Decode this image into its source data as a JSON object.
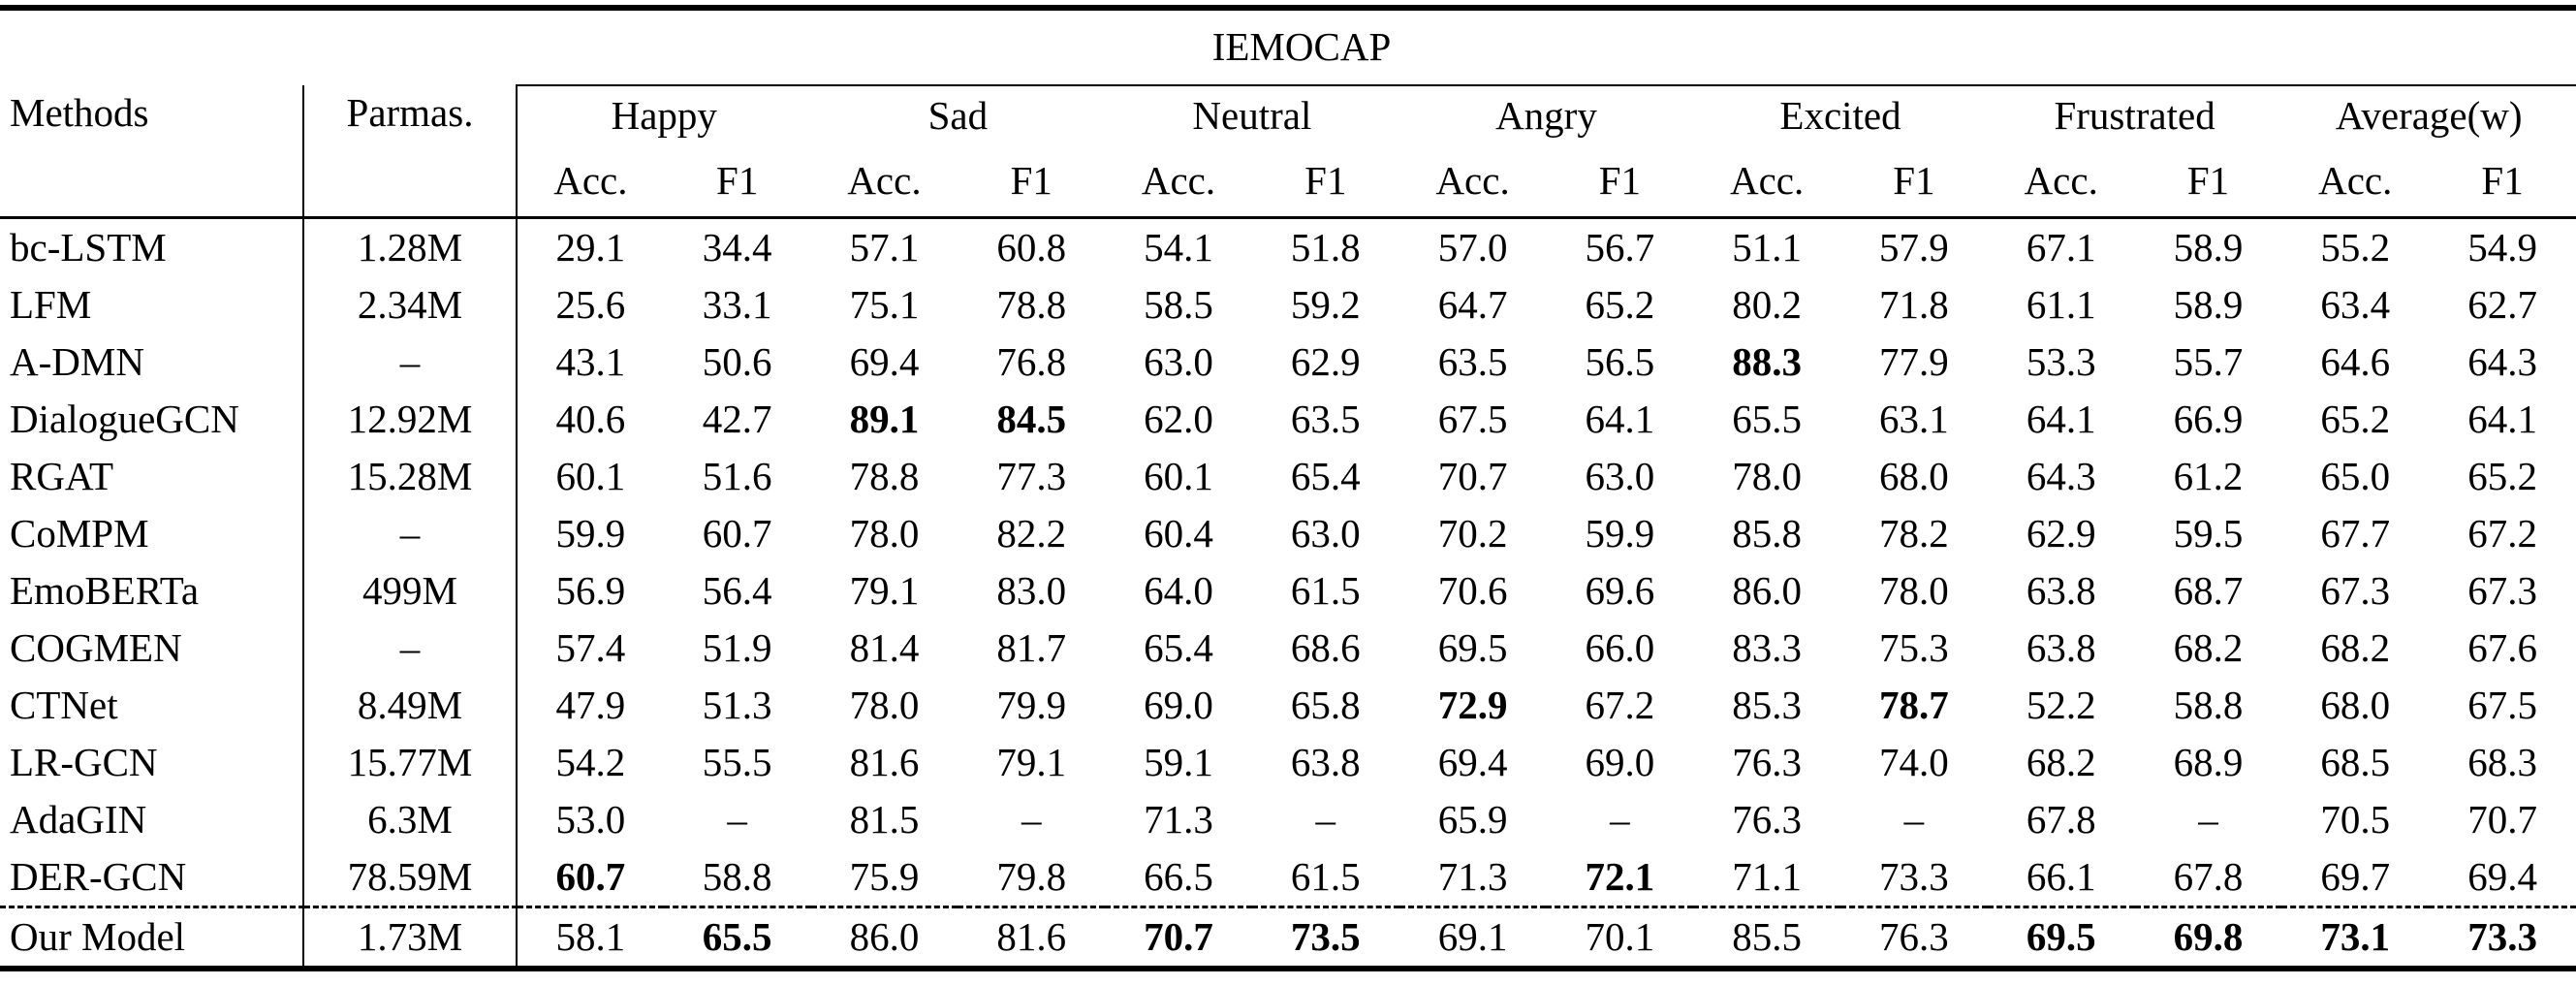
{
  "table": {
    "dataset": "IEMOCAP",
    "methods_label": "Methods",
    "params_label": "Parmas.",
    "groups": [
      {
        "label": "Happy",
        "sub": [
          "Acc.",
          "F1"
        ]
      },
      {
        "label": "Sad",
        "sub": [
          "Acc.",
          "F1"
        ]
      },
      {
        "label": "Neutral",
        "sub": [
          "Acc.",
          "F1"
        ]
      },
      {
        "label": "Angry",
        "sub": [
          "Acc.",
          "F1"
        ]
      },
      {
        "label": "Excited",
        "sub": [
          "Acc.",
          "F1"
        ]
      },
      {
        "label": "Frustrated",
        "sub": [
          "Acc.",
          "F1"
        ]
      },
      {
        "label": "Average(w)",
        "sub": [
          "Acc.",
          "F1"
        ]
      }
    ],
    "rows": [
      {
        "method": "bc-LSTM",
        "params": "1.28M",
        "values": [
          "29.1",
          "34.4",
          "57.1",
          "60.8",
          "54.1",
          "51.8",
          "57.0",
          "56.7",
          "51.1",
          "57.9",
          "67.1",
          "58.9",
          "55.2",
          "54.9"
        ],
        "bold": [],
        "ours": false
      },
      {
        "method": "LFM",
        "params": "2.34M",
        "values": [
          "25.6",
          "33.1",
          "75.1",
          "78.8",
          "58.5",
          "59.2",
          "64.7",
          "65.2",
          "80.2",
          "71.8",
          "61.1",
          "58.9",
          "63.4",
          "62.7"
        ],
        "bold": [],
        "ours": false
      },
      {
        "method": "A-DMN",
        "params": "–",
        "values": [
          "43.1",
          "50.6",
          "69.4",
          "76.8",
          "63.0",
          "62.9",
          "63.5",
          "56.5",
          "88.3",
          "77.9",
          "53.3",
          "55.7",
          "64.6",
          "64.3"
        ],
        "bold": [
          8
        ],
        "ours": false
      },
      {
        "method": "DialogueGCN",
        "params": "12.92M",
        "values": [
          "40.6",
          "42.7",
          "89.1",
          "84.5",
          "62.0",
          "63.5",
          "67.5",
          "64.1",
          "65.5",
          "63.1",
          "64.1",
          "66.9",
          "65.2",
          "64.1"
        ],
        "bold": [
          2,
          3
        ],
        "ours": false
      },
      {
        "method": "RGAT",
        "params": "15.28M",
        "values": [
          "60.1",
          "51.6",
          "78.8",
          "77.3",
          "60.1",
          "65.4",
          "70.7",
          "63.0",
          "78.0",
          "68.0",
          "64.3",
          "61.2",
          "65.0",
          "65.2"
        ],
        "bold": [],
        "ours": false
      },
      {
        "method": "CoMPM",
        "params": "–",
        "values": [
          "59.9",
          "60.7",
          "78.0",
          "82.2",
          "60.4",
          "63.0",
          "70.2",
          "59.9",
          "85.8",
          "78.2",
          "62.9",
          "59.5",
          "67.7",
          "67.2"
        ],
        "bold": [],
        "ours": false
      },
      {
        "method": "EmoBERTa",
        "params": "499M",
        "values": [
          "56.9",
          "56.4",
          "79.1",
          "83.0",
          "64.0",
          "61.5",
          "70.6",
          "69.6",
          "86.0",
          "78.0",
          "63.8",
          "68.7",
          "67.3",
          "67.3"
        ],
        "bold": [],
        "ours": false
      },
      {
        "method": "COGMEN",
        "params": "–",
        "values": [
          "57.4",
          "51.9",
          "81.4",
          "81.7",
          "65.4",
          "68.6",
          "69.5",
          "66.0",
          "83.3",
          "75.3",
          "63.8",
          "68.2",
          "68.2",
          "67.6"
        ],
        "bold": [],
        "ours": false
      },
      {
        "method": "CTNet",
        "params": "8.49M",
        "values": [
          "47.9",
          "51.3",
          "78.0",
          "79.9",
          "69.0",
          "65.8",
          "72.9",
          "67.2",
          "85.3",
          "78.7",
          "52.2",
          "58.8",
          "68.0",
          "67.5"
        ],
        "bold": [
          6,
          9
        ],
        "ours": false
      },
      {
        "method": "LR-GCN",
        "params": "15.77M",
        "values": [
          "54.2",
          "55.5",
          "81.6",
          "79.1",
          "59.1",
          "63.8",
          "69.4",
          "69.0",
          "76.3",
          "74.0",
          "68.2",
          "68.9",
          "68.5",
          "68.3"
        ],
        "bold": [],
        "ours": false
      },
      {
        "method": "AdaGIN",
        "params": "6.3M",
        "values": [
          "53.0",
          "–",
          "81.5",
          "–",
          "71.3",
          "–",
          "65.9",
          "–",
          "76.3",
          "–",
          "67.8",
          "–",
          "70.5",
          "70.7"
        ],
        "bold": [],
        "ours": false
      },
      {
        "method": "DER-GCN",
        "params": "78.59M",
        "values": [
          "60.7",
          "58.8",
          "75.9",
          "79.8",
          "66.5",
          "61.5",
          "71.3",
          "72.1",
          "71.1",
          "73.3",
          "66.1",
          "67.8",
          "69.7",
          "69.4"
        ],
        "bold": [
          0,
          7
        ],
        "ours": false
      },
      {
        "method": "Our Model",
        "params": "1.73M",
        "values": [
          "58.1",
          "65.5",
          "86.0",
          "81.6",
          "70.7",
          "73.5",
          "69.1",
          "70.1",
          "85.5",
          "76.3",
          "69.5",
          "69.8",
          "73.1",
          "73.3"
        ],
        "bold": [
          1,
          4,
          5,
          10,
          11,
          12,
          13
        ],
        "ours": true
      }
    ]
  }
}
